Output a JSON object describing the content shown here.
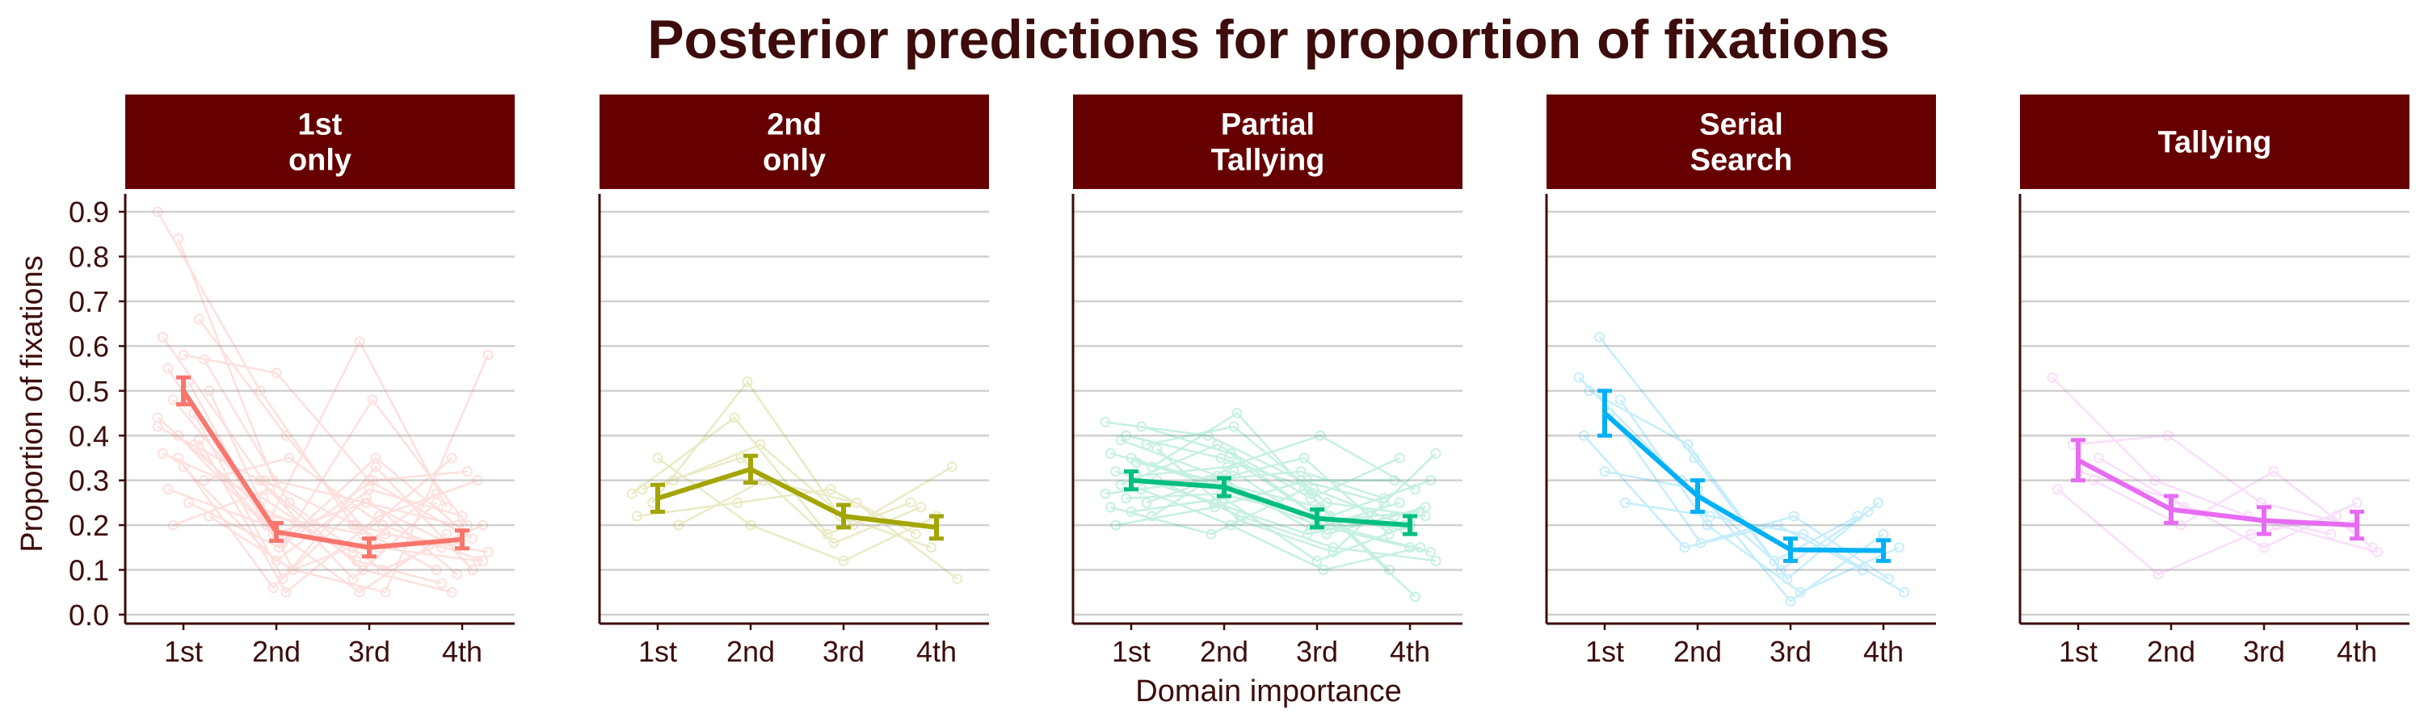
{
  "chart_data": {
    "type": "line",
    "title": "Posterior predictions for proportion of fixations",
    "xlabel": "Domain importance",
    "ylabel": "Proportion of fixations",
    "categories": [
      "1st",
      "2nd",
      "3rd",
      "4th"
    ],
    "yticks": [
      "0.0",
      "0.1",
      "0.2",
      "0.3",
      "0.4",
      "0.5",
      "0.6",
      "0.7",
      "0.8",
      "0.9"
    ],
    "ylim": [
      -0.02,
      0.94
    ],
    "grid": "horizontal",
    "strip_color": "#660000",
    "panels": [
      {
        "label_lines": [
          "1st",
          "only"
        ],
        "color": "#f8766d",
        "mean": [
          0.5,
          0.185,
          0.15,
          0.168
        ],
        "lower": [
          0.47,
          0.165,
          0.13,
          0.148
        ],
        "upper": [
          0.53,
          0.205,
          0.17,
          0.188
        ],
        "individuals": [
          [
            0.9,
            0.5,
            0.2,
            0.1
          ],
          [
            0.84,
            0.3,
            0.25,
            0.2
          ],
          [
            0.66,
            0.4,
            0.15,
            0.12
          ],
          [
            0.62,
            0.3,
            0.2,
            0.15
          ],
          [
            0.58,
            0.54,
            0.3,
            0.18
          ],
          [
            0.57,
            0.25,
            0.1,
            0.2
          ],
          [
            0.55,
            0.2,
            0.61,
            0.24
          ],
          [
            0.52,
            0.15,
            0.48,
            0.2
          ],
          [
            0.5,
            0.1,
            0.05,
            0.58
          ],
          [
            0.48,
            0.22,
            0.18,
            0.35
          ],
          [
            0.45,
            0.08,
            0.33,
            0.1
          ],
          [
            0.42,
            0.3,
            0.08,
            0.25
          ],
          [
            0.4,
            0.18,
            0.25,
            0.15
          ],
          [
            0.39,
            0.05,
            0.22,
            0.3
          ],
          [
            0.36,
            0.26,
            0.12,
            0.07
          ],
          [
            0.33,
            0.12,
            0.28,
            0.22
          ],
          [
            0.3,
            0.35,
            0.2,
            0.12
          ],
          [
            0.28,
            0.2,
            0.05,
            0.18
          ],
          [
            0.25,
            0.15,
            0.3,
            0.32
          ],
          [
            0.22,
            0.1,
            0.18,
            0.14
          ],
          [
            0.2,
            0.28,
            0.1,
            0.05
          ],
          [
            0.38,
            0.16,
            0.35,
            0.17
          ],
          [
            0.44,
            0.24,
            0.14,
            0.27
          ],
          [
            0.35,
            0.06,
            0.26,
            0.09
          ]
        ]
      },
      {
        "label_lines": [
          "2nd",
          "only"
        ],
        "color": "#a3a500",
        "mean": [
          0.26,
          0.325,
          0.22,
          0.195
        ],
        "lower": [
          0.23,
          0.295,
          0.195,
          0.17
        ],
        "upper": [
          0.29,
          0.355,
          0.245,
          0.22
        ],
        "individuals": [
          [
            0.27,
            0.44,
            0.18,
            0.25
          ],
          [
            0.25,
            0.52,
            0.22,
            0.15
          ],
          [
            0.3,
            0.38,
            0.2,
            0.33
          ],
          [
            0.22,
            0.25,
            0.28,
            0.18
          ],
          [
            0.35,
            0.2,
            0.12,
            0.22
          ],
          [
            0.2,
            0.3,
            0.25,
            0.08
          ],
          [
            0.28,
            0.35,
            0.16,
            0.24
          ]
        ]
      },
      {
        "label_lines": [
          "Partial",
          "Tallying"
        ],
        "color": "#00bf7d",
        "mean": [
          0.3,
          0.285,
          0.215,
          0.2
        ],
        "lower": [
          0.28,
          0.265,
          0.195,
          0.18
        ],
        "upper": [
          0.32,
          0.305,
          0.235,
          0.22
        ],
        "individuals": [
          [
            0.43,
            0.4,
            0.3,
            0.25
          ],
          [
            0.4,
            0.35,
            0.28,
            0.2
          ],
          [
            0.38,
            0.42,
            0.25,
            0.22
          ],
          [
            0.36,
            0.3,
            0.35,
            0.18
          ],
          [
            0.35,
            0.28,
            0.2,
            0.15
          ],
          [
            0.33,
            0.45,
            0.22,
            0.3
          ],
          [
            0.32,
            0.25,
            0.18,
            0.22
          ],
          [
            0.31,
            0.33,
            0.4,
            0.28
          ],
          [
            0.3,
            0.22,
            0.15,
            0.12
          ],
          [
            0.29,
            0.38,
            0.26,
            0.35
          ],
          [
            0.28,
            0.2,
            0.1,
            0.15
          ],
          [
            0.27,
            0.3,
            0.32,
            0.26
          ],
          [
            0.26,
            0.27,
            0.22,
            0.19
          ],
          [
            0.25,
            0.32,
            0.18,
            0.24
          ],
          [
            0.24,
            0.18,
            0.28,
            0.1
          ],
          [
            0.23,
            0.26,
            0.12,
            0.2
          ],
          [
            0.22,
            0.34,
            0.2,
            0.14
          ],
          [
            0.2,
            0.24,
            0.3,
            0.3
          ],
          [
            0.34,
            0.29,
            0.24,
            0.04
          ],
          [
            0.37,
            0.21,
            0.14,
            0.36
          ],
          [
            0.39,
            0.31,
            0.19,
            0.25
          ],
          [
            0.42,
            0.36,
            0.21,
            0.23
          ]
        ]
      },
      {
        "label_lines": [
          "Serial",
          "Search"
        ],
        "color": "#00b0f6",
        "mean": [
          0.45,
          0.265,
          0.145,
          0.143
        ],
        "lower": [
          0.4,
          0.23,
          0.12,
          0.12
        ],
        "upper": [
          0.5,
          0.3,
          0.17,
          0.166
        ],
        "individuals": [
          [
            0.53,
            0.3,
            0.12,
            0.22
          ],
          [
            0.62,
            0.35,
            0.08,
            0.25
          ],
          [
            0.48,
            0.2,
            0.05,
            0.15
          ],
          [
            0.4,
            0.15,
            0.2,
            0.1
          ],
          [
            0.32,
            0.28,
            0.03,
            0.18
          ],
          [
            0.25,
            0.22,
            0.18,
            0.05
          ],
          [
            0.5,
            0.38,
            0.1,
            0.23
          ],
          [
            0.45,
            0.16,
            0.22,
            0.08
          ]
        ]
      },
      {
        "label_lines": [
          "Tallying"
        ],
        "color": "#e76bf3",
        "mean": [
          0.345,
          0.235,
          0.21,
          0.2
        ],
        "lower": [
          0.3,
          0.205,
          0.18,
          0.17
        ],
        "upper": [
          0.39,
          0.265,
          0.24,
          0.23
        ],
        "individuals": [
          [
            0.53,
            0.3,
            0.22,
            0.18
          ],
          [
            0.38,
            0.4,
            0.25,
            0.2
          ],
          [
            0.3,
            0.2,
            0.32,
            0.15
          ],
          [
            0.28,
            0.09,
            0.18,
            0.22
          ],
          [
            0.32,
            0.26,
            0.15,
            0.25
          ],
          [
            0.35,
            0.24,
            0.2,
            0.14
          ]
        ]
      }
    ]
  }
}
